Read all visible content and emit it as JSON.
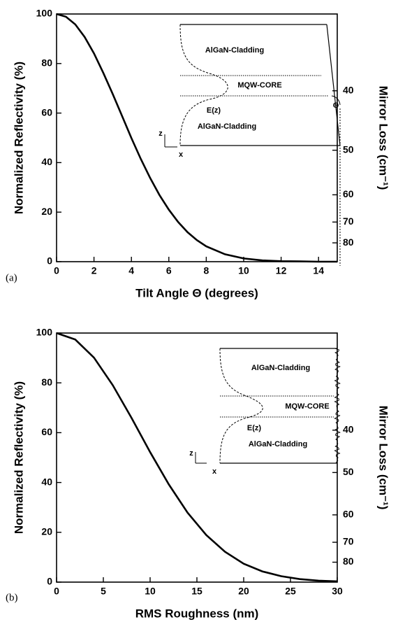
{
  "chart_data": [
    {
      "type": "line",
      "panel_label": "(a)",
      "xlabel": "Tilt Angle Θ (degrees)",
      "ylabel": "Normalized Reflectivity (%)",
      "y2label": "Mirror Loss (cm⁻¹)",
      "x": [
        0,
        0.5,
        1,
        1.5,
        2,
        2.5,
        3,
        3.5,
        4,
        4.5,
        5,
        5.5,
        6,
        6.5,
        7,
        7.5,
        8,
        9,
        10,
        11,
        12,
        13,
        14,
        15
      ],
      "values": [
        100,
        98.9,
        95.8,
        90.7,
        84.1,
        76.2,
        67.7,
        58.8,
        49.9,
        41.5,
        33.8,
        26.9,
        21.0,
        16.0,
        11.9,
        8.7,
        6.2,
        3.0,
        1.3,
        0.5,
        0.2,
        0.1,
        0,
        0
      ],
      "color": "#000000",
      "xlim": [
        0,
        15
      ],
      "xticks": [
        0,
        2,
        4,
        6,
        8,
        10,
        12,
        14
      ],
      "ylim": [
        0,
        100
      ],
      "yticks": [
        0,
        20,
        40,
        60,
        80,
        100
      ],
      "y2ticks": [
        40,
        50,
        60,
        70,
        80
      ],
      "y2tick_reflectivity": [
        69,
        45,
        27,
        16,
        7.6
      ],
      "annotations": [
        "AlGaN-Cladding",
        "MQW-CORE",
        "E(z)",
        "AlGaN-Cladding",
        "Θ",
        "z",
        "x"
      ]
    },
    {
      "type": "line",
      "panel_label": "(b)",
      "xlabel": "RMS Roughness (nm)",
      "ylabel": "Normalized Reflectivity (%)",
      "y2label": "Mirror Loss (cm⁻¹)",
      "x": [
        0,
        2,
        4,
        6,
        8,
        10,
        12,
        14,
        16,
        18,
        20,
        22,
        24,
        26,
        28,
        30
      ],
      "values": [
        100,
        97.4,
        90.1,
        79.1,
        66.0,
        52.2,
        39.2,
        27.9,
        18.9,
        12.2,
        7.4,
        4.3,
        2.4,
        1.2,
        0.6,
        0.3
      ],
      "color": "#000000",
      "xlim": [
        0,
        30
      ],
      "xticks": [
        0,
        5,
        10,
        15,
        20,
        25,
        30
      ],
      "ylim": [
        0,
        100
      ],
      "yticks": [
        0,
        20,
        40,
        60,
        80,
        100
      ],
      "y2ticks": [
        40,
        50,
        60,
        70,
        80
      ],
      "y2tick_reflectivity": [
        61,
        44,
        27,
        16,
        8
      ],
      "annotations": [
        "AlGaN-Cladding",
        "MQW-CORE",
        "E(z)",
        "AlGaN-Cladding",
        "z",
        "x"
      ]
    }
  ]
}
